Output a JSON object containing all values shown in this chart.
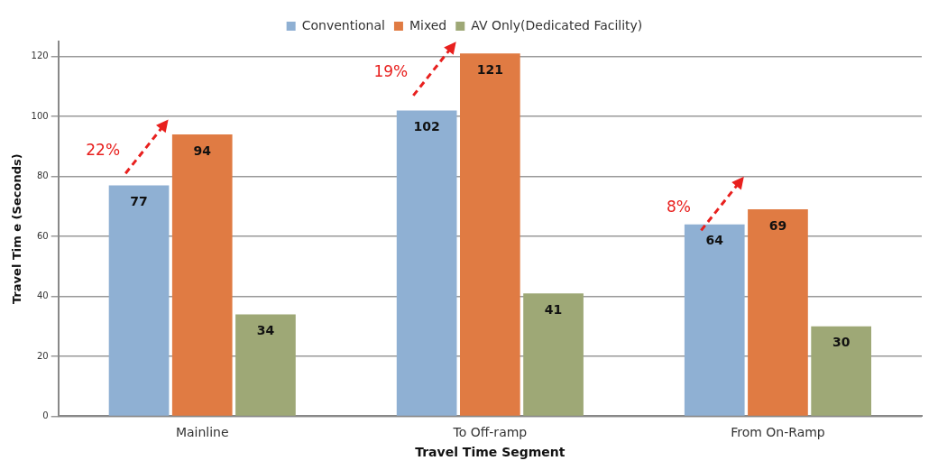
{
  "chart_data": {
    "type": "bar",
    "categories": [
      "Mainline",
      "To Off-ramp",
      "From On-Ramp"
    ],
    "series": [
      {
        "name": "Conventional",
        "color": "#8fb0d3",
        "values": [
          77,
          102,
          64
        ]
      },
      {
        "name": "Mixed",
        "color": "#e07b43",
        "values": [
          94,
          121,
          69
        ]
      },
      {
        "name": "AV Only(Dedicated Facility)",
        "color": "#9ea876",
        "values": [
          34,
          41,
          30
        ]
      }
    ],
    "xlabel": "Travel Time Segment",
    "ylabel": "Travel Tim e (Seconds)",
    "ylim": [
      0,
      125
    ],
    "yticks": [
      0,
      20,
      40,
      60,
      80,
      100,
      120
    ],
    "grid": "y",
    "legend": "top",
    "data_labels": true,
    "annotations": [
      "22%",
      "19%",
      "8%"
    ]
  }
}
